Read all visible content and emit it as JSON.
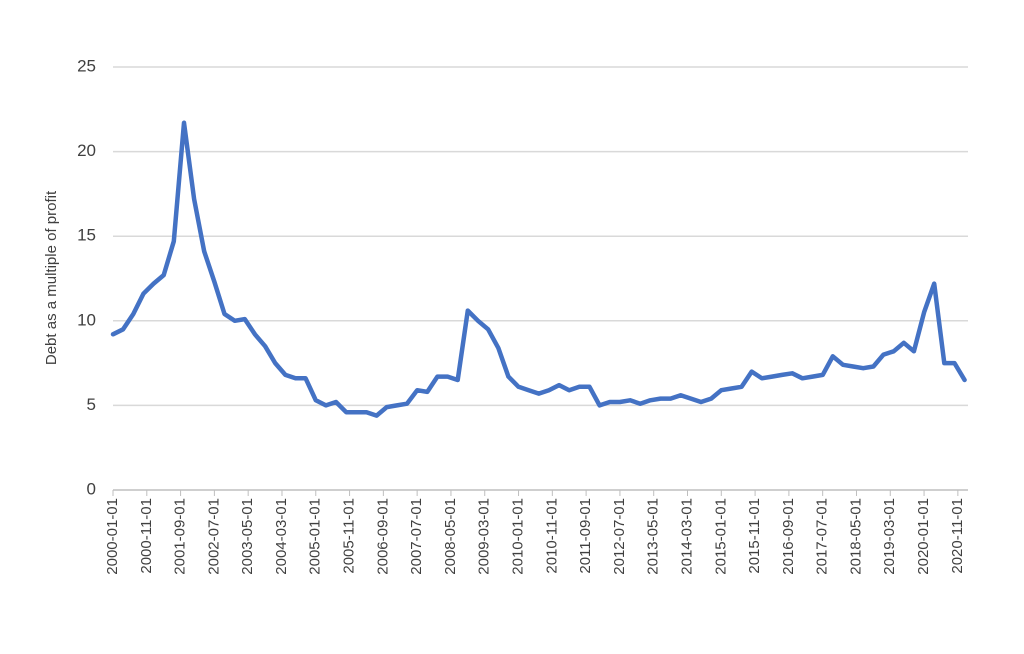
{
  "chart_data": {
    "type": "line",
    "y_label": "Debt as a multiple  of profit",
    "x": [
      "2000-01-01",
      "2000-04-01",
      "2000-07-01",
      "2000-10-01",
      "2001-01-01",
      "2001-04-01",
      "2001-07-01",
      "2001-10-01",
      "2002-01-01",
      "2002-04-01",
      "2002-07-01",
      "2002-10-01",
      "2003-01-01",
      "2003-04-01",
      "2003-07-01",
      "2003-10-01",
      "2004-01-01",
      "2004-04-01",
      "2004-07-01",
      "2004-10-01",
      "2005-01-01",
      "2005-04-01",
      "2005-07-01",
      "2005-10-01",
      "2006-01-01",
      "2006-04-01",
      "2006-07-01",
      "2006-10-01",
      "2007-01-01",
      "2007-04-01",
      "2007-07-01",
      "2007-10-01",
      "2008-01-01",
      "2008-04-01",
      "2008-07-01",
      "2008-10-01",
      "2009-01-01",
      "2009-04-01",
      "2009-07-01",
      "2009-10-01",
      "2010-01-01",
      "2010-04-01",
      "2010-07-01",
      "2010-10-01",
      "2011-01-01",
      "2011-04-01",
      "2011-07-01",
      "2011-10-01",
      "2012-01-01",
      "2012-04-01",
      "2012-07-01",
      "2012-10-01",
      "2013-01-01",
      "2013-04-01",
      "2013-07-01",
      "2013-10-01",
      "2014-01-01",
      "2014-04-01",
      "2014-07-01",
      "2014-10-01",
      "2015-01-01",
      "2015-04-01",
      "2015-07-01",
      "2015-10-01",
      "2016-01-01",
      "2016-04-01",
      "2016-07-01",
      "2016-10-01",
      "2017-01-01",
      "2017-04-01",
      "2017-07-01",
      "2017-10-01",
      "2018-01-01",
      "2018-04-01",
      "2018-07-01",
      "2018-10-01",
      "2019-01-01",
      "2019-04-01",
      "2019-07-01",
      "2019-10-01",
      "2020-01-01",
      "2020-04-01",
      "2020-07-01",
      "2020-10-01",
      "2021-01-01"
    ],
    "values": [
      9.2,
      9.5,
      10.4,
      11.6,
      12.2,
      12.7,
      14.7,
      21.7,
      17.2,
      14.1,
      12.3,
      10.4,
      10.0,
      10.1,
      9.2,
      8.5,
      7.5,
      6.8,
      6.6,
      6.6,
      5.3,
      5.0,
      5.2,
      4.6,
      4.6,
      4.6,
      4.4,
      4.9,
      5.0,
      5.1,
      5.9,
      5.8,
      6.7,
      6.7,
      6.5,
      10.6,
      10.0,
      9.5,
      8.4,
      6.7,
      6.1,
      5.9,
      5.7,
      5.9,
      6.2,
      5.9,
      6.1,
      6.1,
      5.0,
      5.2,
      5.2,
      5.3,
      5.1,
      5.3,
      5.4,
      5.4,
      5.6,
      5.4,
      5.2,
      5.4,
      5.9,
      6.0,
      6.1,
      7.0,
      6.6,
      6.7,
      6.8,
      6.9,
      6.6,
      6.7,
      6.8,
      7.9,
      7.4,
      7.3,
      7.2,
      7.3,
      8.0,
      8.2,
      8.7,
      8.2,
      10.5,
      12.2,
      7.5,
      7.5,
      6.5
    ],
    "color": "#4472c4",
    "xlim": [
      "2000-01-01",
      "2021-02-01"
    ],
    "xticks": [
      "2000-01-01",
      "2000-11-01",
      "2001-09-01",
      "2002-07-01",
      "2003-05-01",
      "2004-03-01",
      "2005-01-01",
      "2005-11-01",
      "2006-09-01",
      "2007-07-01",
      "2008-05-01",
      "2009-03-01",
      "2010-01-01",
      "2010-11-01",
      "2011-09-01",
      "2012-07-01",
      "2013-05-01",
      "2014-03-01",
      "2015-01-01",
      "2015-11-01",
      "2016-09-01",
      "2017-07-01",
      "2018-05-01",
      "2019-03-01",
      "2020-01-01",
      "2020-11-01"
    ],
    "ylim": [
      0,
      25
    ],
    "yticks": [
      0,
      5,
      10,
      15,
      20,
      25
    ],
    "grid": true
  }
}
